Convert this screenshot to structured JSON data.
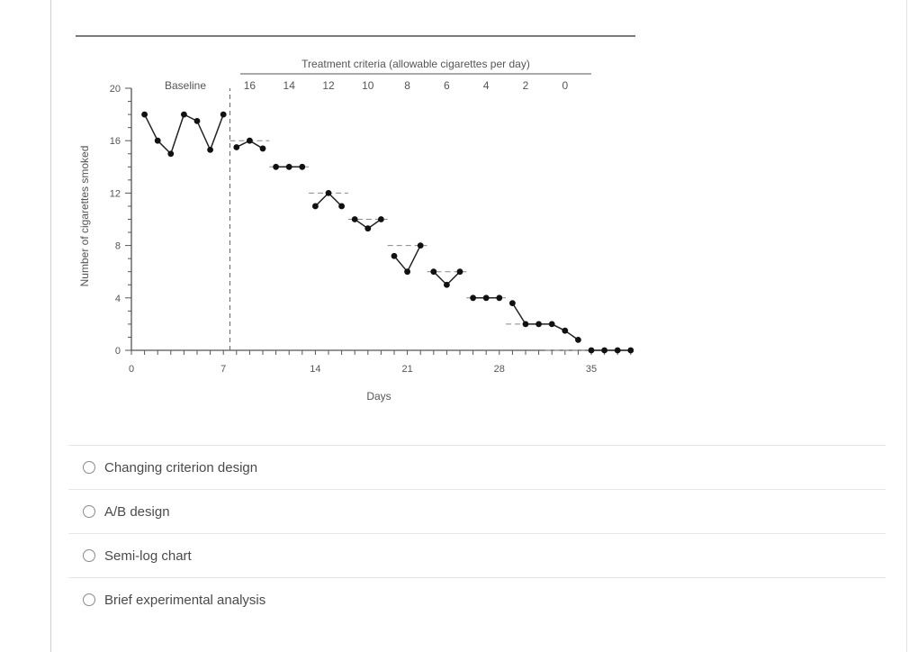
{
  "chart_data": {
    "type": "line",
    "title": "",
    "xlabel": "Days",
    "ylabel": "Number of cigarettes smoked",
    "xlim": [
      0,
      38
    ],
    "ylim": [
      0,
      20
    ],
    "xticks": [
      0,
      7,
      14,
      21,
      28,
      35
    ],
    "yticks": [
      0,
      4,
      8,
      12,
      16,
      20
    ],
    "phase_labels": {
      "baseline": "Baseline",
      "treatment": "Treatment criteria (allowable cigarettes per day)"
    },
    "phase_line_x": 7.5,
    "criteria": [
      {
        "label": "16",
        "value": 16,
        "x_start": 7.5,
        "x_end": 10.5
      },
      {
        "label": "14",
        "value": 14,
        "x_start": 10.5,
        "x_end": 13.5
      },
      {
        "label": "12",
        "value": 12,
        "x_start": 13.5,
        "x_end": 16.5
      },
      {
        "label": "10",
        "value": 10,
        "x_start": 16.5,
        "x_end": 19.5
      },
      {
        "label": "8",
        "value": 8,
        "x_start": 19.5,
        "x_end": 22.5
      },
      {
        "label": "6",
        "value": 6,
        "x_start": 22.5,
        "x_end": 25.5
      },
      {
        "label": "4",
        "value": 4,
        "x_start": 25.5,
        "x_end": 28.5
      },
      {
        "label": "2",
        "value": 2,
        "x_start": 28.5,
        "x_end": 31.5
      },
      {
        "label": "0",
        "value": 0,
        "x_start": 31.5,
        "x_end": 34.5
      }
    ],
    "segments": [
      {
        "x": [
          1,
          2,
          3,
          4,
          5,
          6,
          7
        ],
        "y": [
          18,
          16,
          15,
          18,
          17.5,
          15.3,
          18
        ]
      },
      {
        "x": [
          8,
          9,
          10
        ],
        "y": [
          15.5,
          16,
          15.4
        ]
      },
      {
        "x": [
          11,
          12,
          13
        ],
        "y": [
          14,
          14,
          14
        ]
      },
      {
        "x": [
          14,
          15,
          16
        ],
        "y": [
          11,
          12,
          11
        ]
      },
      {
        "x": [
          17,
          18,
          19
        ],
        "y": [
          10,
          9.3,
          10
        ]
      },
      {
        "x": [
          20,
          21,
          22
        ],
        "y": [
          7.2,
          6,
          8
        ]
      },
      {
        "x": [
          23,
          24,
          25
        ],
        "y": [
          6,
          5,
          6
        ]
      },
      {
        "x": [
          26,
          27,
          28
        ],
        "y": [
          4,
          4,
          4
        ]
      },
      {
        "x": [
          29,
          30,
          31,
          32,
          33,
          34
        ],
        "y": [
          3.6,
          2,
          2,
          2,
          1.5,
          0.8
        ]
      },
      {
        "x": [
          35,
          36,
          37,
          38
        ],
        "y": [
          0,
          0,
          0,
          0
        ]
      }
    ]
  },
  "options": [
    {
      "label": "Changing criterion design"
    },
    {
      "label": "A/B design"
    },
    {
      "label": "Semi-log chart"
    },
    {
      "label": "Brief experimental analysis"
    }
  ]
}
